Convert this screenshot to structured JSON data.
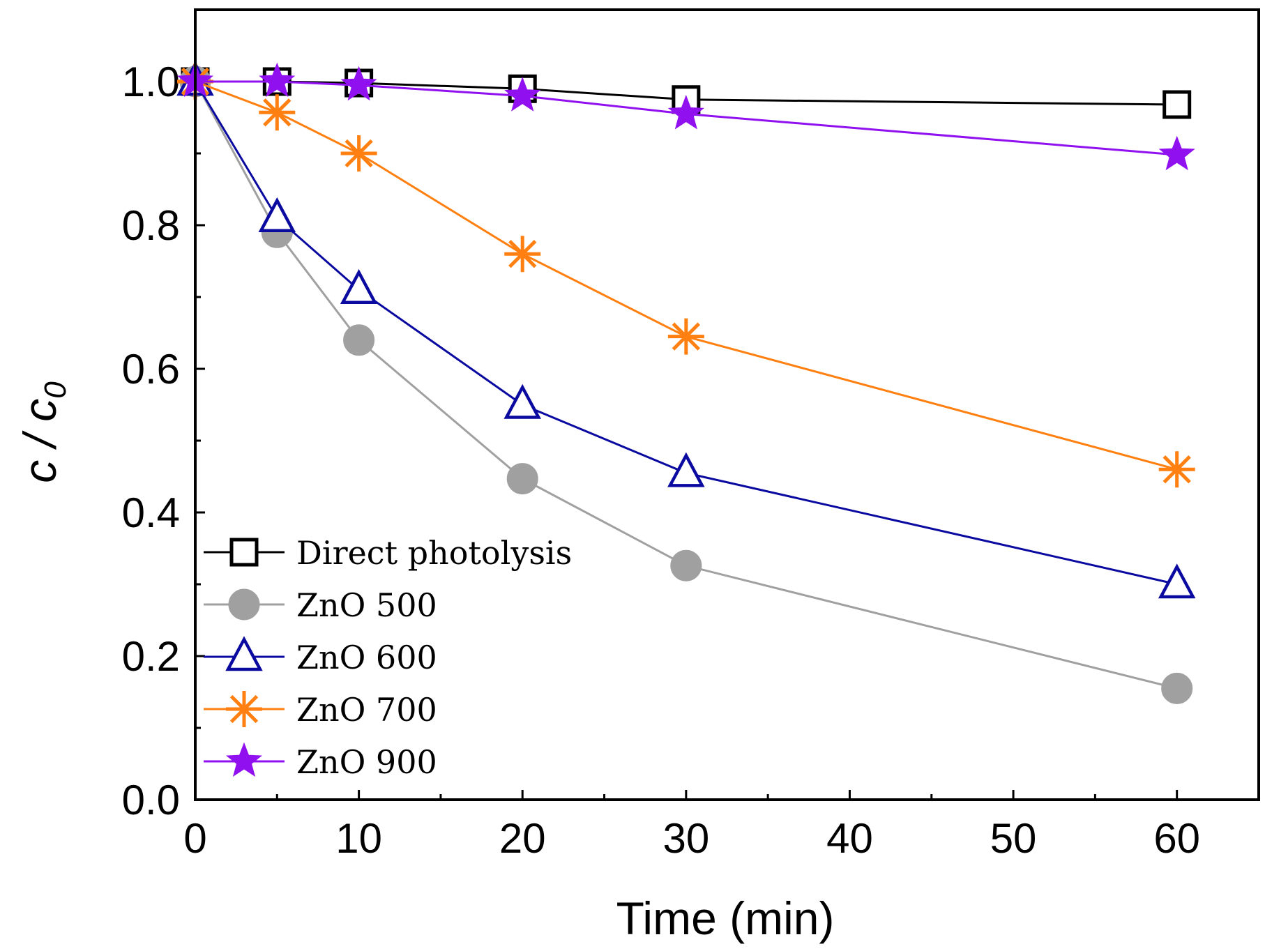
{
  "chart_data": {
    "type": "line",
    "xlabel": "Time (min)",
    "ylabel_main": "c / c",
    "ylabel_sub": "0",
    "xlim": [
      0,
      65
    ],
    "ylim": [
      0,
      1.1
    ],
    "x_ticks": [
      0,
      10,
      20,
      30,
      40,
      50,
      60
    ],
    "y_ticks": [
      0.0,
      0.2,
      0.4,
      0.6,
      0.8,
      1.0
    ],
    "x_tick_labels": [
      "0",
      "10",
      "20",
      "30",
      "40",
      "50",
      "60"
    ],
    "y_tick_labels": [
      "0.0",
      "0.2",
      "0.4",
      "0.6",
      "0.8",
      "1.0"
    ],
    "grid": false,
    "legend_position": "bottom-left",
    "x": [
      0,
      5,
      10,
      20,
      30,
      60
    ],
    "series": [
      {
        "name": "Direct photolysis",
        "marker": "square",
        "color": "#000000",
        "values": [
          1.0,
          1.0,
          0.998,
          0.99,
          0.975,
          0.968
        ]
      },
      {
        "name": "ZnO 500",
        "marker": "circle",
        "color": "#a0a0a0",
        "values": [
          1.0,
          0.79,
          0.64,
          0.447,
          0.326,
          0.155
        ]
      },
      {
        "name": "ZnO 600",
        "marker": "triangle",
        "color": "#0a0aa0",
        "values": [
          1.0,
          0.81,
          0.71,
          0.55,
          0.455,
          0.3
        ]
      },
      {
        "name": "ZnO 700",
        "marker": "asterisk",
        "color": "#ff8010",
        "values": [
          1.0,
          0.957,
          0.9,
          0.76,
          0.645,
          0.46
        ]
      },
      {
        "name": "ZnO 900",
        "marker": "star",
        "color": "#9010f0",
        "values": [
          1.0,
          1.0,
          0.995,
          0.98,
          0.955,
          0.898
        ]
      }
    ]
  }
}
